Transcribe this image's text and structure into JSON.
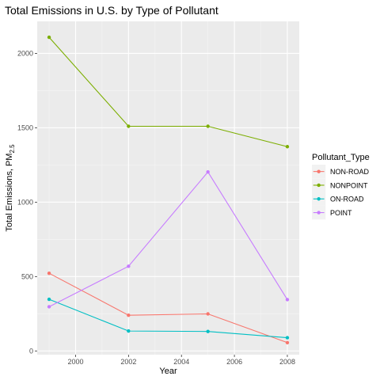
{
  "chart_data": {
    "type": "line",
    "title": "Total Emissions in U.S. by Type of Pollutant",
    "xlabel": "Year",
    "ylabel_main": "Total Emissions, PM",
    "ylabel_sub": "2.5",
    "x": [
      1999,
      2002,
      2005,
      2008
    ],
    "xlim": [
      1998.55,
      2008.45
    ],
    "ylim": [
      -25,
      2215
    ],
    "xticks": [
      2000,
      2002,
      2004,
      2006,
      2008
    ],
    "xtick_labels": [
      "2000",
      "2002",
      "2004",
      "2006",
      "2008"
    ],
    "yticks": [
      0,
      500,
      1000,
      1500,
      2000
    ],
    "ytick_labels": [
      "0",
      "500",
      "1000",
      "1500",
      "2000"
    ],
    "grid": true,
    "legend_title": "Pollutant_Type",
    "legend_position": "right",
    "series": [
      {
        "name": "NON-ROAD",
        "color": "#F8766D",
        "values": [
          522,
          240,
          249,
          56
        ]
      },
      {
        "name": "NONPOINT",
        "color": "#7CAE00",
        "values": [
          2108,
          1510,
          1510,
          1373
        ]
      },
      {
        "name": "ON-ROAD",
        "color": "#00BFC4",
        "values": [
          347,
          134,
          131,
          89
        ]
      },
      {
        "name": "POINT",
        "color": "#C77CFF",
        "values": [
          297,
          569,
          1203,
          345
        ]
      }
    ]
  }
}
